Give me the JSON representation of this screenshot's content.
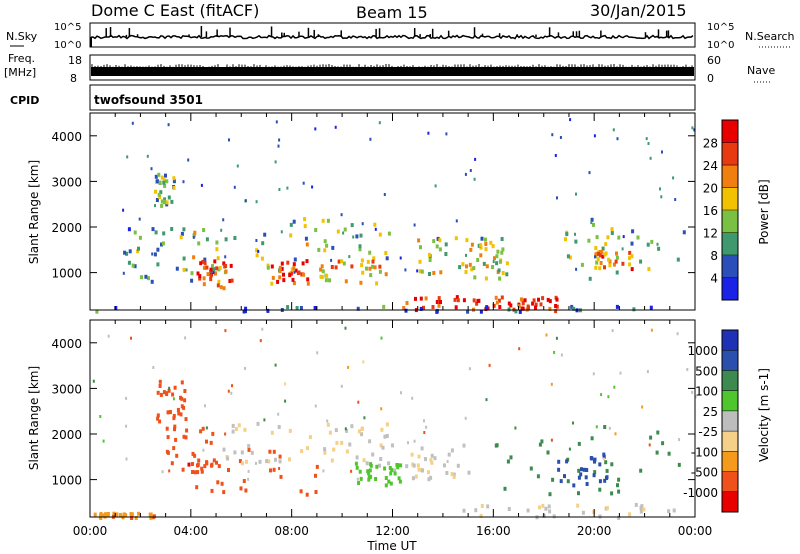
{
  "header": {
    "title": "Dome C East (fitACF)",
    "beam": "Beam 15",
    "date": "30/Jan/2015"
  },
  "status_panels": {
    "nsky_label": "N.Sky",
    "nsky_ticks": [
      "10^5",
      "10^0"
    ],
    "nsearch_label": "N.Search",
    "freq_label": "Freq.",
    "freq_unit": "[MHz]",
    "freq_ticks": [
      "18",
      "8"
    ],
    "nave_label": "Nave",
    "nave_ticks": [
      "60",
      "0"
    ],
    "cpid_label": "CPID",
    "cpid_value": "twofsound 3501"
  },
  "colors": {
    "power": [
      "#1a22e6",
      "#2a4fb8",
      "#3e9a6e",
      "#7ac043",
      "#f2c200",
      "#f07f10",
      "#e83a10",
      "#e80000"
    ],
    "velocity": [
      "#e80000",
      "#f0501a",
      "#f59a1c",
      "#f5d088",
      "#bdbdbd",
      "#4fc52e",
      "#3d8a4e",
      "#2b4fad",
      "#1f32b5"
    ],
    "ground_scatter": "#c0c0c0"
  },
  "chart_data": [
    {
      "type": "heatmap",
      "name": "power",
      "xlabel": "",
      "ylabel": "Slant Range [km]",
      "x_ticks": [
        "00:00",
        "04:00",
        "08:00",
        "12:00",
        "16:00",
        "20:00",
        "00:00"
      ],
      "xlim": [
        0,
        24
      ],
      "ylim": [
        180,
        4500
      ],
      "y_ticks": [
        1000,
        2000,
        3000,
        4000
      ],
      "colorbar": {
        "label": "Power [dB]",
        "range": [
          0,
          32
        ],
        "ticks": [
          4,
          8,
          12,
          16,
          20,
          24,
          28
        ]
      },
      "regions": [
        {
          "t": [
            1.3,
            4.0
          ],
          "r": [
            800,
            2000
          ],
          "v": 10
        },
        {
          "t": [
            2.5,
            3.3
          ],
          "r": [
            2500,
            3200
          ],
          "v": 12
        },
        {
          "t": [
            3.5,
            8.8
          ],
          "r": [
            1000,
            2000
          ],
          "v": 14
        },
        {
          "t": [
            4.2,
            5.6
          ],
          "r": [
            700,
            1300
          ],
          "v": 26
        },
        {
          "t": [
            7.0,
            8.6
          ],
          "r": [
            800,
            1300
          ],
          "v": 26
        },
        {
          "t": [
            7.8,
            12.0
          ],
          "r": [
            1300,
            2300
          ],
          "v": 12
        },
        {
          "t": [
            9.0,
            11.8
          ],
          "r": [
            800,
            1300
          ],
          "v": 20
        },
        {
          "t": [
            12.3,
            15.5
          ],
          "r": [
            1000,
            1800
          ],
          "v": 14
        },
        {
          "t": [
            12.2,
            16.4
          ],
          "r": [
            200,
            520
          ],
          "v": 28
        },
        {
          "t": [
            15.0,
            16.5
          ],
          "r": [
            900,
            1800
          ],
          "v": 16
        },
        {
          "t": [
            16.5,
            18.5
          ],
          "r": [
            200,
            500
          ],
          "v": 28
        },
        {
          "t": [
            18.8,
            23.6
          ],
          "r": [
            900,
            2300
          ],
          "v": 12
        },
        {
          "t": [
            20.0,
            21.5
          ],
          "r": [
            1100,
            1500
          ],
          "v": 22
        },
        {
          "t": [
            0.0,
            24.0
          ],
          "r": [
            180,
            300
          ],
          "v": 6
        }
      ]
    },
    {
      "type": "heatmap",
      "name": "velocity",
      "xlabel": "Time UT",
      "ylabel": "Slant Range [km]",
      "x_ticks": [
        "00:00",
        "04:00",
        "08:00",
        "12:00",
        "16:00",
        "20:00",
        "00:00"
      ],
      "xlim": [
        0,
        24
      ],
      "ylim": [
        180,
        4500
      ],
      "y_ticks": [
        1000,
        2000,
        3000,
        4000
      ],
      "colorbar": {
        "label": "Velocity [m s-1]",
        "ticks": [
          "1000",
          "500",
          "100",
          "25",
          "-25",
          "-100",
          "-500",
          "-1000"
        ]
      },
      "regions": [
        {
          "t": [
            2.6,
            3.8
          ],
          "r": [
            2200,
            3200
          ],
          "v": -300
        },
        {
          "t": [
            3.0,
            5.0
          ],
          "r": [
            1200,
            2200
          ],
          "v": -300
        },
        {
          "t": [
            3.8,
            9.0
          ],
          "r": [
            700,
            1700
          ],
          "v": -400
        },
        {
          "t": [
            5.0,
            9.5
          ],
          "r": [
            1400,
            2300
          ],
          "v": 0
        },
        {
          "t": [
            9.0,
            12.2
          ],
          "r": [
            1200,
            2300
          ],
          "v": 0
        },
        {
          "t": [
            10.5,
            12.3
          ],
          "r": [
            900,
            1400
          ],
          "v": 60
        },
        {
          "t": [
            12.5,
            15.0
          ],
          "r": [
            1000,
            1800
          ],
          "v": 0
        },
        {
          "t": [
            14.5,
            24.0
          ],
          "r": [
            200,
            500
          ],
          "v": 0
        },
        {
          "t": [
            15.8,
            23.5
          ],
          "r": [
            600,
            2200
          ],
          "v": 300
        },
        {
          "t": [
            18.5,
            20.5
          ],
          "r": [
            900,
            1600
          ],
          "v": 700
        },
        {
          "t": [
            0.0,
            2.5
          ],
          "r": [
            200,
            300
          ],
          "v": -80
        }
      ]
    }
  ]
}
